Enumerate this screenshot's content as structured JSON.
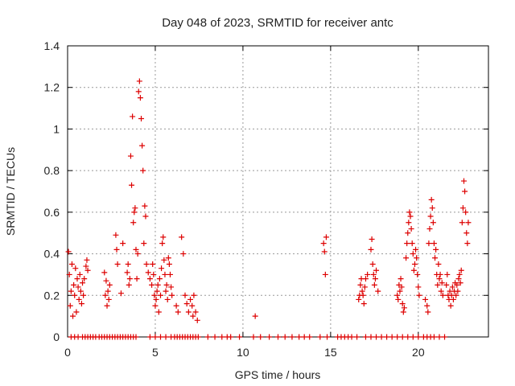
{
  "chart_data": {
    "type": "scatter",
    "title": "Day 048 of 2023, SRMTID for receiver antc",
    "xlabel": "GPS time / hours",
    "ylabel": "SRMTID / TECUs",
    "xlim": [
      0,
      24
    ],
    "ylim": [
      0,
      1.4
    ],
    "xticks": [
      0,
      5,
      10,
      15,
      20
    ],
    "xtick_labels": [
      "0",
      "5",
      "10",
      "15",
      "20"
    ],
    "yticks": [
      0,
      0.2,
      0.4,
      0.6,
      0.8,
      1.0,
      1.2,
      1.4
    ],
    "ytick_labels": [
      "0",
      "0.2",
      "0.4",
      "0.6",
      "0.8",
      "1",
      "1.2",
      "1.4"
    ],
    "grid": true,
    "marker": "+",
    "color": "#dd0000",
    "series": [
      {
        "name": "SRMTID",
        "x": [
          0.05,
          0.1,
          0.15,
          0.2,
          0.25,
          0.3,
          0.35,
          0.4,
          0.45,
          0.5,
          0.55,
          0.6,
          0.65,
          0.7,
          0.75,
          0.8,
          0.85,
          0.9,
          0.95,
          1.05,
          1.1,
          1.15,
          2.1,
          2.15,
          2.2,
          2.25,
          2.3,
          2.35,
          2.4,
          2.75,
          2.8,
          2.85,
          3.05,
          3.15,
          3.4,
          3.45,
          3.5,
          3.55,
          3.6,
          3.65,
          3.7,
          3.75,
          3.8,
          3.85,
          3.9,
          3.95,
          4.0,
          4.05,
          4.1,
          4.15,
          4.2,
          4.25,
          4.3,
          4.35,
          4.4,
          4.45,
          4.5,
          4.6,
          4.7,
          4.8,
          4.85,
          4.9,
          4.95,
          5.0,
          5.05,
          5.1,
          5.15,
          5.2,
          5.25,
          5.3,
          5.35,
          5.4,
          5.45,
          5.5,
          5.55,
          5.6,
          5.65,
          5.7,
          5.75,
          5.8,
          5.85,
          5.9,
          5.95,
          6.2,
          6.3,
          6.5,
          6.6,
          6.7,
          6.8,
          6.9,
          7.0,
          7.1,
          7.15,
          7.2,
          7.3,
          7.4,
          10.7,
          14.6,
          14.65,
          14.7,
          14.75,
          16.6,
          16.65,
          16.7,
          16.75,
          16.8,
          16.85,
          16.9,
          16.95,
          17.0,
          17.1,
          17.3,
          17.35,
          17.4,
          17.45,
          17.5,
          17.55,
          17.6,
          17.7,
          18.8,
          18.85,
          18.9,
          18.95,
          19.0,
          19.05,
          19.1,
          19.15,
          19.2,
          19.3,
          19.35,
          19.4,
          19.45,
          19.5,
          19.55,
          19.6,
          19.65,
          19.7,
          19.75,
          19.8,
          19.85,
          19.9,
          19.95,
          20.0,
          20.05,
          20.4,
          20.5,
          20.55,
          20.6,
          20.65,
          20.7,
          20.75,
          20.8,
          20.85,
          20.9,
          20.95,
          21.0,
          21.05,
          21.1,
          21.15,
          21.2,
          21.25,
          21.3,
          21.35,
          21.4,
          21.6,
          21.65,
          21.7,
          21.75,
          21.8,
          21.85,
          21.9,
          21.95,
          22.0,
          22.05,
          22.1,
          22.15,
          22.2,
          22.25,
          22.3,
          22.35,
          22.4,
          22.45,
          22.5,
          22.55,
          22.6,
          22.65,
          22.7,
          22.75,
          22.8,
          22.85
        ],
        "y": [
          0.41,
          0.3,
          0.15,
          0.22,
          0.35,
          0.1,
          0.25,
          0.2,
          0.33,
          0.12,
          0.28,
          0.24,
          0.18,
          0.3,
          0.22,
          0.16,
          0.26,
          0.2,
          0.28,
          0.34,
          0.37,
          0.32,
          0.31,
          0.2,
          0.27,
          0.15,
          0.22,
          0.18,
          0.25,
          0.49,
          0.42,
          0.35,
          0.21,
          0.45,
          0.31,
          0.35,
          0.25,
          0.28,
          0.87,
          0.73,
          1.06,
          0.55,
          0.6,
          0.62,
          0.42,
          0.28,
          0.4,
          1.18,
          1.23,
          1.15,
          1.05,
          0.92,
          0.8,
          0.45,
          0.63,
          0.58,
          0.35,
          0.31,
          0.28,
          0.25,
          0.35,
          0.3,
          0.2,
          0.15,
          0.18,
          0.22,
          0.25,
          0.12,
          0.28,
          0.2,
          0.33,
          0.45,
          0.48,
          0.37,
          0.3,
          0.22,
          0.25,
          0.18,
          0.38,
          0.35,
          0.3,
          0.24,
          0.2,
          0.15,
          0.12,
          0.48,
          0.4,
          0.2,
          0.16,
          0.12,
          0.18,
          0.15,
          0.1,
          0.2,
          0.12,
          0.08,
          0.1,
          0.45,
          0.41,
          0.3,
          0.48,
          0.18,
          0.2,
          0.25,
          0.28,
          0.22,
          0.2,
          0.16,
          0.24,
          0.28,
          0.3,
          0.42,
          0.47,
          0.35,
          0.3,
          0.25,
          0.28,
          0.32,
          0.22,
          0.2,
          0.18,
          0.25,
          0.22,
          0.28,
          0.24,
          0.16,
          0.12,
          0.14,
          0.38,
          0.45,
          0.5,
          0.55,
          0.6,
          0.58,
          0.52,
          0.45,
          0.4,
          0.32,
          0.35,
          0.42,
          0.38,
          0.3,
          0.24,
          0.2,
          0.18,
          0.15,
          0.12,
          0.45,
          0.52,
          0.58,
          0.66,
          0.62,
          0.55,
          0.45,
          0.38,
          0.42,
          0.3,
          0.25,
          0.35,
          0.28,
          0.3,
          0.22,
          0.26,
          0.2,
          0.25,
          0.3,
          0.2,
          0.18,
          0.22,
          0.15,
          0.2,
          0.24,
          0.18,
          0.22,
          0.26,
          0.2,
          0.25,
          0.22,
          0.28,
          0.3,
          0.26,
          0.32,
          0.55,
          0.62,
          0.75,
          0.7,
          0.6,
          0.5,
          0.45,
          0.55
        ],
        "x_zero": [
          0.2,
          0.4,
          0.6,
          0.85,
          1.0,
          1.15,
          1.3,
          1.45,
          1.6,
          1.8,
          1.95,
          2.1,
          2.25,
          2.4,
          2.55,
          2.7,
          2.85,
          3.0,
          3.15,
          3.3,
          3.45,
          3.6,
          3.75,
          3.9,
          4.7,
          5.0,
          5.3,
          5.6,
          5.9,
          6.1,
          6.25,
          6.4,
          6.55,
          6.7,
          6.85,
          7.0,
          7.15,
          7.3,
          7.45,
          8.0,
          8.4,
          8.8,
          9.1,
          9.3,
          9.8,
          10.6,
          11.0,
          11.5,
          12.0,
          12.4,
          12.8,
          13.2,
          13.5,
          13.8,
          14.4,
          14.8,
          15.4,
          15.6,
          15.8,
          16.0,
          16.2,
          16.5,
          17.0,
          17.3,
          17.6,
          17.9,
          18.2,
          18.5,
          18.8,
          19.1,
          19.4,
          19.7,
          20.0,
          20.3,
          20.5,
          20.7,
          20.9,
          21.2,
          21.5
        ]
      }
    ]
  }
}
